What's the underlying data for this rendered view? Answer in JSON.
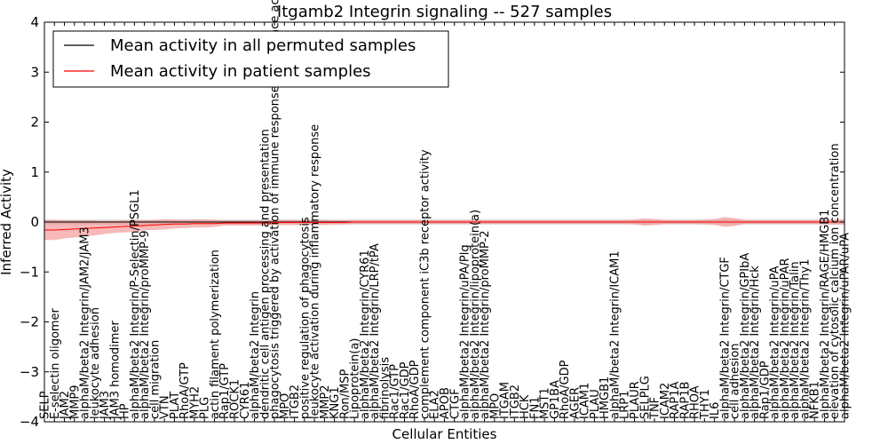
{
  "chart_data": {
    "type": "line",
    "title": "Itgamb2 Integrin signaling -- 527 samples",
    "xlabel": "Cellular Entities",
    "ylabel": "Inferred Activity",
    "ylim": [
      -4,
      4
    ],
    "yticks": [
      -4,
      -3,
      -2,
      -1,
      0,
      1,
      2,
      3,
      4
    ],
    "grid": false,
    "legend_position": "top-left",
    "colors": {
      "permuted": "#000000",
      "patient": "#ff0000",
      "patient_band": "#f08080",
      "permuted_band": "#b0b0b0"
    },
    "categories": [
      "SELP",
      "E-selectin oligomer",
      "JAM2",
      "MMP9",
      "alphaM/beta2 Integrin/JAM2/JAM3",
      "leukocyte adhesion",
      "JAM3",
      "JAM3 homodimer",
      "HP",
      "alphaM/beta2 Integrin/P-Selectin/PSGL1",
      "alphaM/beta2 Integrin/proMMP-9",
      "cell migration",
      "VTN",
      "PLAT",
      "RhoA/GTP",
      "MYH2",
      "PLG",
      "actin filament polymerization",
      "Rap1/GTP",
      "ROCK1",
      "CYR61",
      "alphaM/beta2 Integrin",
      "dendritic cell antigen processing and presentation",
      "phagocytosis triggered by activation of immune response cell surface activating receptor",
      "MPO",
      "ITGB2",
      "positive regulation of phagocytosis",
      "leukocyte activation during inflammatory response",
      "MMP2",
      "KNG1",
      "Ron/MSP",
      "Lipoprotein(a)",
      "alphaM/beta2 Integrin/CYR61",
      "alphaM/beta2 Integrin/LRP/tPA",
      "fibrinolysis",
      "Rac1/GTP",
      "Rac1/GDP",
      "RhoA/GDP",
      "complement component iC3b receptor activity",
      "ELA2",
      "APOB",
      "CTGF",
      "alphaM/beta2 Integrin/uPA/Plg",
      "alphaM/beta2 Integrin/lipoprotein(a)",
      "alphaM/beta2 Integrin/proMMP-2",
      "MPO",
      "ITGAM",
      "ITGB2",
      "HCK",
      "FN1",
      "MST1",
      "GP1BA",
      "RhoA/GDP",
      "AGER",
      "ICAM1",
      "PLAU",
      "HMGB1",
      "alphaM/beta2 Integrin/ICAM1",
      "LRP1",
      "PLAUR",
      "SELPLG",
      "TNF",
      "ICAM2",
      "RAP1A",
      "RAP1B",
      "RHOA",
      "THY1",
      "IL6",
      "alphaM/beta2 Integrin/CTGF",
      "cell adhesion",
      "alphaM/beta2 Integrin/GPIbA",
      "alphaM/beta2 Integrin/Hck",
      "Rap1/GDP",
      "alphaM/beta2 Integrin/uPA",
      "alphaM/beta2 Integrin/uPAR",
      "alphaM/beta2 Integrin/Talin",
      "alphaM/beta2 Integrin/Thy1",
      "NFKB1",
      "alphaM/beta2 Integrin/RAGE/HMGB1",
      "elevation of cytosolic calcium ion concentration",
      "alphaM/beta2 Integrin/uPAR/uPA"
    ],
    "series": [
      {
        "name": "Mean activity in all permuted samples",
        "values": [
          0,
          0,
          0,
          0,
          0,
          0,
          0,
          0,
          0,
          0,
          0,
          0,
          0,
          0,
          0,
          0,
          0,
          0,
          0,
          0,
          0,
          0,
          0,
          0,
          0,
          0,
          0,
          0,
          0,
          0,
          0,
          0,
          0,
          0,
          0,
          0,
          0,
          0,
          0,
          0,
          0,
          0,
          0,
          0,
          0,
          0,
          0,
          0,
          0,
          0,
          0,
          0,
          0,
          0,
          0,
          0,
          0,
          0,
          0,
          0,
          0,
          0,
          0,
          0,
          0,
          0,
          0,
          0,
          0,
          0,
          0,
          0,
          0,
          0,
          0,
          0,
          0,
          0,
          0,
          0,
          0
        ],
        "band": [
          0.05,
          0.05,
          0.05,
          0.05,
          0.05,
          0.05,
          0.05,
          0.05,
          0.05,
          0.05,
          0.05,
          0.05,
          0.05,
          0.05,
          0.05,
          0.05,
          0.05,
          0.05,
          0.05,
          0.05,
          0.05,
          0.05,
          0.05,
          0.05,
          0.05,
          0.05,
          0.05,
          0.05,
          0.05,
          0.05,
          0.05,
          0.05,
          0.05,
          0.05,
          0.05,
          0.05,
          0.05,
          0.05,
          0.05,
          0.05,
          0.05,
          0.05,
          0.05,
          0.05,
          0.05,
          0.05,
          0.05,
          0.05,
          0.05,
          0.05,
          0.05,
          0.05,
          0.05,
          0.05,
          0.05,
          0.05,
          0.05,
          0.05,
          0.05,
          0.05,
          0.05,
          0.05,
          0.05,
          0.05,
          0.05,
          0.05,
          0.05,
          0.05,
          0.05,
          0.05,
          0.05,
          0.05,
          0.05,
          0.05,
          0.05,
          0.05,
          0.05,
          0.05,
          0.05,
          0.05,
          0.05
        ]
      },
      {
        "name": "Mean activity in patient samples",
        "values": [
          -0.16,
          -0.16,
          -0.15,
          -0.14,
          -0.13,
          -0.12,
          -0.11,
          -0.1,
          -0.09,
          -0.08,
          -0.07,
          -0.06,
          -0.05,
          -0.04,
          -0.04,
          -0.03,
          -0.03,
          -0.03,
          -0.02,
          -0.02,
          -0.02,
          -0.02,
          -0.02,
          -0.01,
          -0.01,
          -0.01,
          -0.01,
          -0.01,
          -0.01,
          -0.01,
          -0.01,
          0,
          0,
          0,
          0,
          0,
          0,
          0,
          0,
          0,
          0,
          0,
          0,
          0,
          0,
          0,
          0,
          0,
          0,
          0,
          0,
          0,
          0,
          0,
          0,
          0,
          0,
          0,
          0,
          0,
          0,
          0,
          0,
          0,
          0,
          0,
          0,
          0,
          0,
          0,
          0,
          0,
          0,
          0,
          0,
          0,
          0,
          0,
          0,
          0,
          0
        ],
        "band": [
          0.2,
          0.2,
          0.18,
          0.17,
          0.16,
          0.15,
          0.13,
          0.12,
          0.12,
          0.12,
          0.1,
          0.1,
          0.1,
          0.09,
          0.08,
          0.08,
          0.08,
          0.07,
          0.05,
          0.05,
          0.05,
          0.05,
          0.05,
          0.05,
          0.05,
          0.05,
          0.05,
          0.05,
          0.05,
          0.04,
          0.04,
          0.04,
          0.04,
          0.04,
          0.04,
          0.04,
          0.04,
          0.04,
          0.04,
          0.04,
          0.04,
          0.04,
          0.04,
          0.04,
          0.04,
          0.04,
          0.04,
          0.04,
          0.04,
          0.04,
          0.04,
          0.04,
          0.04,
          0.04,
          0.04,
          0.04,
          0.04,
          0.04,
          0.04,
          0.05,
          0.07,
          0.06,
          0.04,
          0.04,
          0.04,
          0.04,
          0.05,
          0.06,
          0.1,
          0.08,
          0.04,
          0.04,
          0.04,
          0.04,
          0.04,
          0.04,
          0.04,
          0.04,
          0.05,
          0.05,
          0.05
        ]
      }
    ]
  }
}
